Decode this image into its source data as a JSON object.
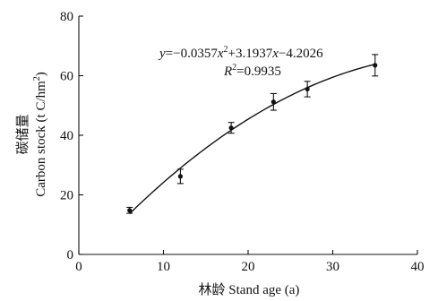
{
  "chart_data": {
    "type": "scatter",
    "xlabel": "林龄 Stand age (a)",
    "ylabel_cn": "碳储量",
    "ylabel_en_pre": "Carbon stock (t C/hm",
    "ylabel_en_sup": "2",
    "ylabel_en_post": ")",
    "xlim": [
      0,
      40
    ],
    "ylim": [
      0,
      80
    ],
    "x_ticks": [
      0,
      10,
      20,
      30,
      40
    ],
    "y_ticks": [
      0,
      20,
      40,
      60,
      80
    ],
    "x_tick_labels": [
      "0",
      "10",
      "20",
      "30",
      "40"
    ],
    "y_tick_labels": [
      "0",
      "20",
      "40",
      "60",
      "80"
    ],
    "grid": false,
    "series": [
      {
        "points": [
          {
            "x": 6,
            "y": 14.8,
            "err": 1.0
          },
          {
            "x": 12,
            "y": 26.2,
            "err": 2.4
          },
          {
            "x": 18,
            "y": 42.5,
            "err": 1.8
          },
          {
            "x": 23,
            "y": 51.2,
            "err": 2.8
          },
          {
            "x": 27,
            "y": 55.5,
            "err": 2.6
          },
          {
            "x": 35,
            "y": 63.5,
            "err": 3.6
          }
        ]
      }
    ],
    "fit": {
      "a": -0.0357,
      "b": 3.1937,
      "c": -4.2026,
      "x_range": [
        6,
        35
      ],
      "equation_text": {
        "y": "y",
        "eq1": "=−0.0357",
        "x1": "x",
        "sup": "2",
        "eq2": "+3.1937",
        "x2": "x",
        "eq3": "−4.2026"
      },
      "r2_text": {
        "r": "R",
        "sup": "2",
        "val": "=0.9935"
      }
    }
  }
}
